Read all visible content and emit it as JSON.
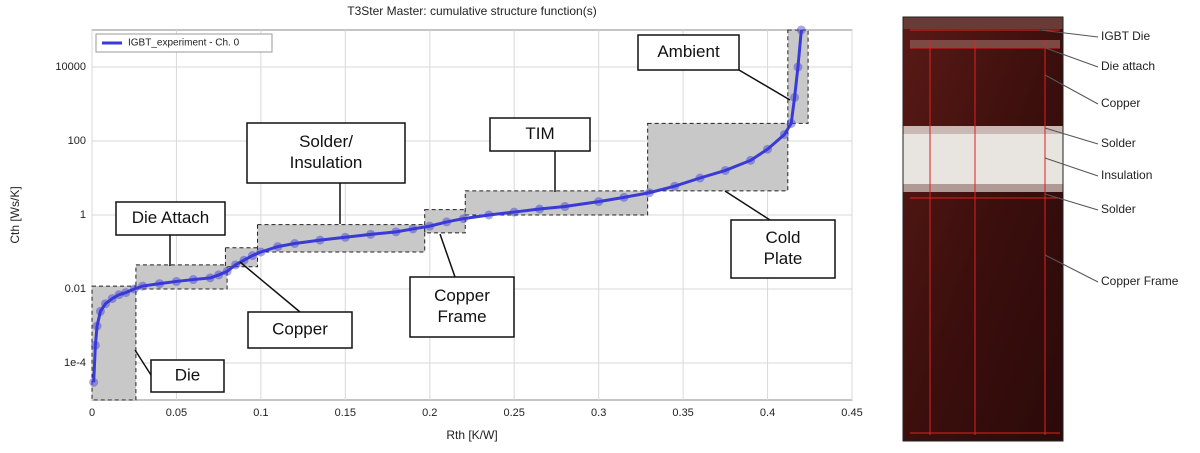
{
  "chart_data": {
    "type": "line",
    "title": "T3Ster Master: cumulative structure function(s)",
    "xlabel": "Rth  [K/W]",
    "ylabel": "Cth  [Ws/K]",
    "x": [
      0.001,
      0.002,
      0.003,
      0.005,
      0.008,
      0.012,
      0.016,
      0.02,
      0.025,
      0.03,
      0.04,
      0.05,
      0.06,
      0.07,
      0.075,
      0.08,
      0.085,
      0.09,
      0.095,
      0.1,
      0.11,
      0.12,
      0.135,
      0.15,
      0.165,
      0.18,
      0.19,
      0.2,
      0.21,
      0.22,
      0.235,
      0.25,
      0.265,
      0.28,
      0.3,
      0.315,
      0.33,
      0.345,
      0.36,
      0.375,
      0.39,
      0.4,
      0.41,
      0.414,
      0.416,
      0.418,
      0.42
    ],
    "series": [
      {
        "name": "IGBT_experiment - Ch. 0",
        "color": "#3a3ad8",
        "values": [
          3e-05,
          0.0003,
          0.001,
          0.0025,
          0.004,
          0.0055,
          0.007,
          0.008,
          0.01,
          0.012,
          0.014,
          0.016,
          0.018,
          0.02,
          0.024,
          0.03,
          0.045,
          0.06,
          0.08,
          0.1,
          0.14,
          0.17,
          0.21,
          0.25,
          0.3,
          0.35,
          0.42,
          0.5,
          0.65,
          0.8,
          1.0,
          1.2,
          1.45,
          1.7,
          2.3,
          3.0,
          4.0,
          6.0,
          10,
          16,
          30,
          60,
          150,
          300,
          1500,
          10000,
          100000
        ]
      }
    ],
    "xlim": [
      0,
      0.45
    ],
    "ylim": [
      1e-05,
      100000
    ],
    "xticks": [
      0,
      0.05,
      0.1,
      0.15,
      0.2,
      0.25,
      0.3,
      0.35,
      0.4,
      0.45
    ],
    "yticks": [
      {
        "value": 0.0001,
        "label": "1e-4"
      },
      0.01,
      1,
      100,
      10000
    ],
    "ylog": true,
    "grid": true,
    "legend": "upper left",
    "regions": [
      {
        "label": [
          "Die"
        ],
        "x": [
          0,
          0.026
        ],
        "y": [
          1e-05,
          0.012
        ]
      },
      {
        "label": [
          "Die Attach"
        ],
        "x": [
          0.026,
          0.08
        ],
        "y": [
          0.01,
          0.045
        ]
      },
      {
        "label": [
          "Copper"
        ],
        "x": [
          0.079,
          0.098
        ],
        "y": [
          0.04,
          0.13
        ]
      },
      {
        "label": [
          "Solder/",
          "Insulation"
        ],
        "x": [
          0.098,
          0.197
        ],
        "y": [
          0.1,
          0.55
        ]
      },
      {
        "label": [
          "Copper",
          "Frame"
        ],
        "x": [
          0.197,
          0.221
        ],
        "y": [
          0.33,
          1.4
        ]
      },
      {
        "label": [
          "TIM"
        ],
        "x": [
          0.221,
          0.329
        ],
        "y": [
          1,
          4.5
        ]
      },
      {
        "label": [
          "Cold",
          "Plate"
        ],
        "x": [
          0.329,
          0.412
        ],
        "y": [
          4.5,
          300
        ]
      },
      {
        "label": [
          "Ambient"
        ],
        "x": [
          0.412,
          0.424
        ],
        "y": [
          300,
          100000
        ]
      }
    ]
  },
  "photo_labels": [
    "IGBT Die",
    "Die attach",
    "Copper",
    "Solder",
    "Insulation",
    "Solder",
    "Copper Frame"
  ]
}
